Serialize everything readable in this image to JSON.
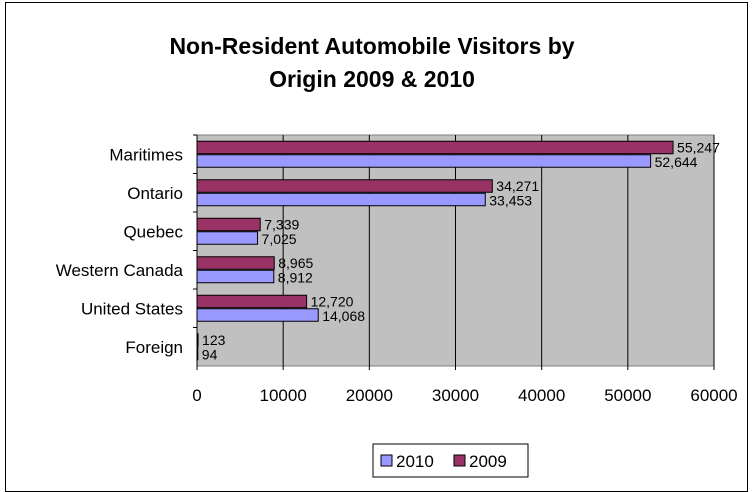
{
  "chart_data": {
    "type": "bar",
    "orientation": "horizontal",
    "title": "Non-Resident Automobile Visitors by Origin 2009 & 2010",
    "title_lines": [
      "Non-Resident Automobile Visitors by",
      "Origin 2009 & 2010"
    ],
    "categories": [
      "Maritimes",
      "Ontario",
      "Quebec",
      "Western Canada",
      "United States",
      "Foreign"
    ],
    "series": [
      {
        "name": "2009",
        "color": "#993366",
        "values": [
          55247,
          34271,
          7339,
          8965,
          12720,
          123
        ],
        "labels": [
          "55,247",
          "34,271",
          "7,339",
          "8,965",
          "12,720",
          "123"
        ]
      },
      {
        "name": "2010",
        "color": "#9999ff",
        "values": [
          52644,
          33453,
          7025,
          8912,
          14068,
          94
        ],
        "labels": [
          "52,644",
          "33,453",
          "7,025",
          "8,912",
          "14,068",
          "94"
        ]
      }
    ],
    "xlim": [
      0,
      60000
    ],
    "xticks": [
      "0",
      "10000",
      "20000",
      "30000",
      "40000",
      "50000",
      "60000"
    ],
    "xlabel": "",
    "ylabel": "",
    "grid": true,
    "plot_background": "#c0c0c0",
    "legend": {
      "position": "bottom",
      "entries": [
        "2010",
        "2009"
      ]
    }
  }
}
